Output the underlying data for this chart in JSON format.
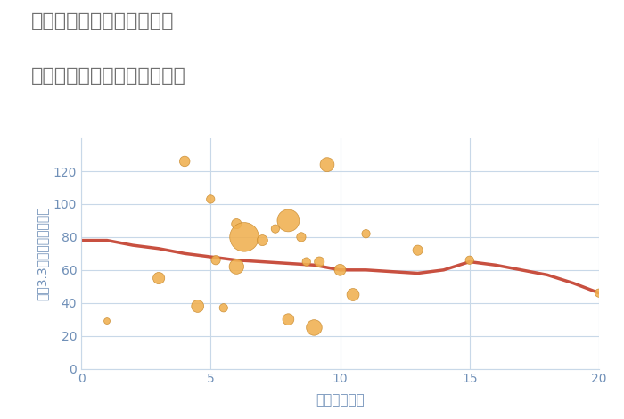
{
  "title_line1": "三重県四日市市波木南台の",
  "title_line2": "駅距離別中古マンション価格",
  "xlabel": "駅距離（分）",
  "ylabel": "坪（3.3㎡）単価（万円）",
  "fig_bg_color": "#ffffff",
  "plot_bg_color": "#ffffff",
  "scatter_color": "#f0b050",
  "scatter_edge_color": "#c8882a",
  "line_color": "#c85040",
  "annotation_color": "#7090b8",
  "tick_color": "#7090b8",
  "grid_color": "#c8d8e8",
  "title_color": "#707070",
  "ylabel_color": "#7090b8",
  "xlim": [
    0,
    20
  ],
  "ylim": [
    0,
    140
  ],
  "xticks": [
    0,
    5,
    10,
    15,
    20
  ],
  "yticks": [
    0,
    20,
    40,
    60,
    80,
    100,
    120
  ],
  "scatter_x": [
    1,
    3,
    4,
    4.5,
    5,
    5.2,
    5.5,
    6,
    6,
    6.3,
    7,
    7.5,
    8,
    8,
    8.5,
    8.7,
    9,
    9.2,
    9.5,
    10,
    10.5,
    11,
    13,
    15,
    20
  ],
  "scatter_y": [
    29,
    55,
    126,
    38,
    103,
    66,
    37,
    62,
    88,
    80,
    78,
    85,
    30,
    90,
    80,
    65,
    25,
    65,
    124,
    60,
    45,
    82,
    72,
    66,
    46
  ],
  "scatter_size": [
    25,
    90,
    70,
    100,
    45,
    55,
    45,
    140,
    65,
    550,
    75,
    45,
    85,
    320,
    55,
    45,
    160,
    65,
    130,
    85,
    100,
    45,
    65,
    45,
    45
  ],
  "line_x": [
    0,
    1,
    2,
    3,
    4,
    5,
    6,
    7,
    8,
    9,
    10,
    11,
    12,
    13,
    14,
    15,
    16,
    17,
    18,
    19,
    20
  ],
  "line_y": [
    78,
    78,
    75,
    73,
    70,
    68,
    66,
    65,
    64,
    63,
    60,
    60,
    59,
    58,
    60,
    65,
    63,
    60,
    57,
    52,
    46
  ]
}
